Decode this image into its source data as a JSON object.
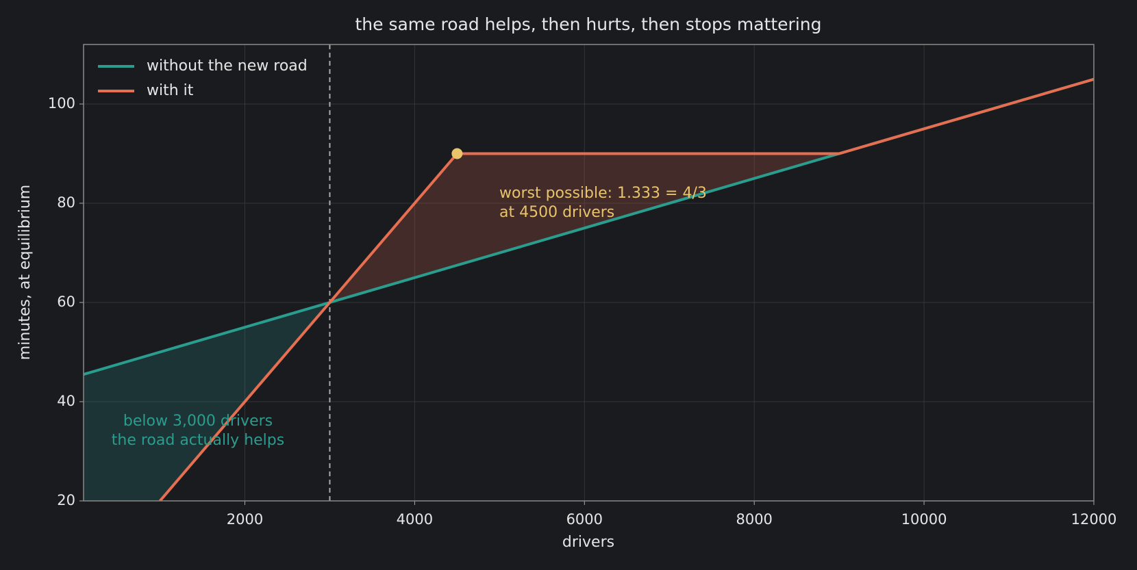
{
  "chart_data": {
    "type": "line",
    "title": "the same road helps, then hurts, then stops mattering",
    "x_label": "drivers",
    "y_label": "minutes, at equilibrium",
    "series": [
      {
        "name": "without the new road",
        "color": "#2a9d8f",
        "x": [
          100,
          12000
        ],
        "values": [
          45.5,
          105
        ]
      },
      {
        "name": "with it",
        "color": "#e76f51",
        "x": [
          1000,
          3000,
          4500,
          9000,
          12000
        ],
        "values": [
          20,
          60,
          90,
          90,
          105
        ]
      }
    ],
    "reference_x": 3000,
    "highlight": {
      "x": 4500,
      "y": 90,
      "color": "#e9c46a"
    },
    "annotations": [
      {
        "lines": [
          "worst possible: 1.333 = 4/3",
          "at 4500 drivers"
        ],
        "color": "#e9c46a"
      },
      {
        "lines": [
          "below 3,000 drivers",
          "the road actually helps"
        ],
        "color": "#2a9d8f"
      }
    ],
    "xlim": [
      100,
      12000
    ],
    "ylim": [
      20,
      112
    ],
    "xticks": [
      2000,
      4000,
      6000,
      8000,
      10000,
      12000
    ],
    "yticks": [
      20,
      40,
      60,
      80,
      100
    ],
    "grid": true,
    "legend": "upper left"
  }
}
